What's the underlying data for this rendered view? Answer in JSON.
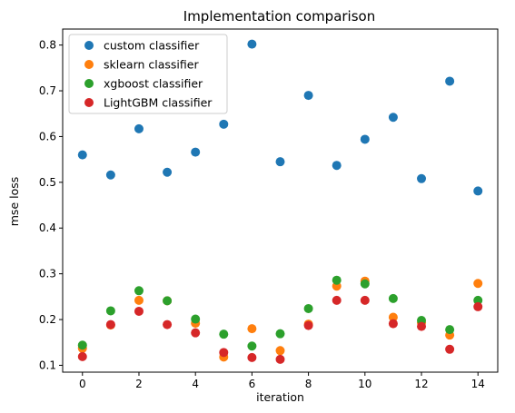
{
  "chart_data": {
    "type": "scatter",
    "title": "Implementation comparison",
    "xlabel": "iteration",
    "ylabel": "mse loss",
    "xlim": [
      -0.7,
      14.7
    ],
    "ylim": [
      0.085,
      0.835
    ],
    "xticks": [
      0,
      2,
      4,
      6,
      8,
      10,
      12,
      14
    ],
    "xtick_labels": [
      "0",
      "2",
      "4",
      "6",
      "8",
      "10",
      "12",
      "14"
    ],
    "yticks": [
      0.1,
      0.2,
      0.3,
      0.4,
      0.5,
      0.6,
      0.7,
      0.8
    ],
    "ytick_labels": [
      "0.1",
      "0.2",
      "0.3",
      "0.4",
      "0.5",
      "0.6",
      "0.7",
      "0.8"
    ],
    "grid": false,
    "legend_position": "top-left",
    "x": [
      0,
      1,
      2,
      3,
      4,
      5,
      6,
      7,
      8,
      9,
      10,
      11,
      12,
      13,
      14
    ],
    "series": [
      {
        "name": "custom classifier",
        "color": "#1f77b4",
        "values": [
          0.56,
          0.516,
          0.617,
          0.522,
          0.566,
          0.627,
          0.802,
          0.545,
          0.69,
          0.537,
          0.594,
          0.642,
          0.508,
          0.721,
          0.481
        ]
      },
      {
        "name": "sklearn classifier",
        "color": "#ff7f0e",
        "values": [
          0.137,
          0.188,
          0.242,
          0.241,
          0.192,
          0.118,
          0.18,
          0.132,
          0.19,
          0.273,
          0.284,
          0.205,
          0.193,
          0.166,
          0.279
        ]
      },
      {
        "name": "xgboost classifier",
        "color": "#2ca02c",
        "values": [
          0.144,
          0.219,
          0.263,
          0.241,
          0.201,
          0.168,
          0.142,
          0.169,
          0.224,
          0.286,
          0.278,
          0.246,
          0.198,
          0.178,
          0.242
        ]
      },
      {
        "name": "LightGBM classifier",
        "color": "#d62728",
        "values": [
          0.119,
          0.189,
          0.218,
          0.189,
          0.171,
          0.128,
          0.117,
          0.113,
          0.187,
          0.242,
          0.242,
          0.191,
          0.185,
          0.135,
          0.228
        ]
      }
    ]
  }
}
